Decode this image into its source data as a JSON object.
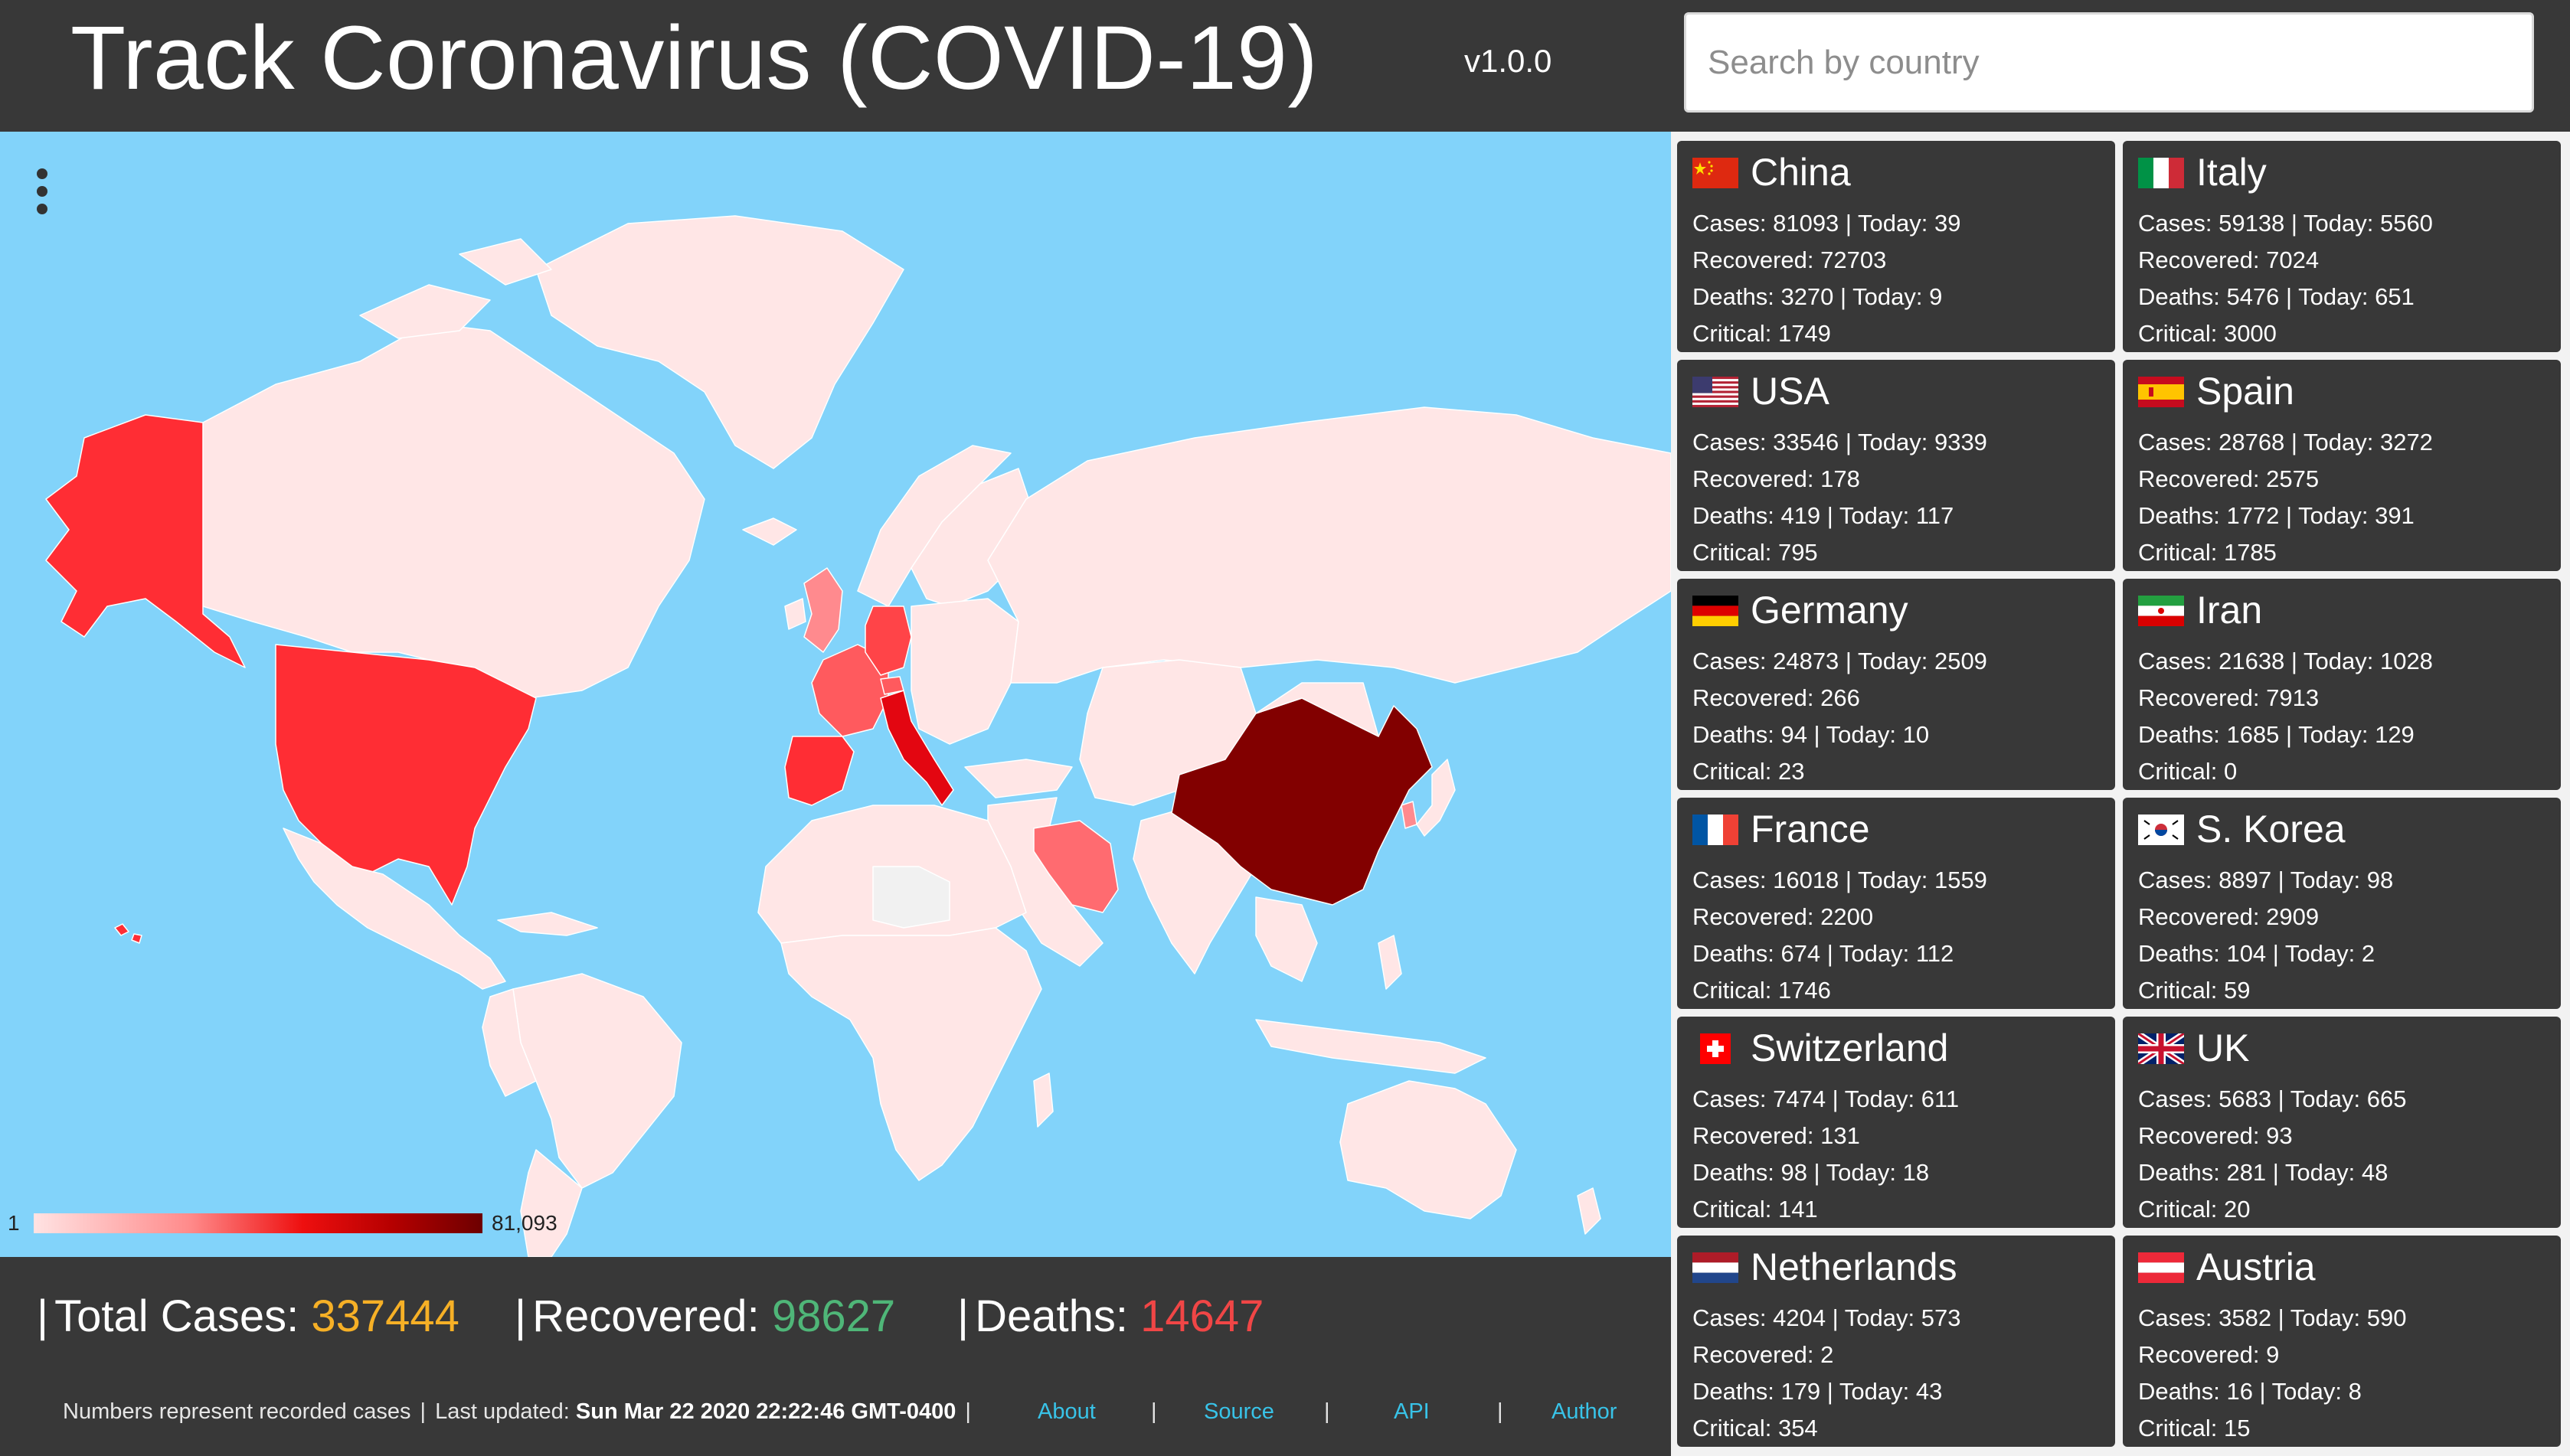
{
  "app": {
    "title": "Track Coronavirus (COVID-19)",
    "version": "v1.0.0"
  },
  "search": {
    "placeholder": "Search by country",
    "value": ""
  },
  "map": {
    "legend_min": "1",
    "legend_max": "81,093",
    "ocean_color": "#82d3fa",
    "menu_icon": "more-vert-icon"
  },
  "stats": {
    "total_cases_label": "Total Cases:",
    "total_cases_value": "337444",
    "recovered_label": "Recovered:",
    "recovered_value": "98627",
    "deaths_label": "Deaths:",
    "deaths_value": "14647"
  },
  "footer": {
    "note": "Numbers represent recorded cases",
    "updated_label": "Last updated:",
    "updated_value": "Sun Mar 22 2020 22:22:46 GMT-0400",
    "links": [
      "About",
      "Source",
      "API",
      "Author"
    ]
  },
  "countries": [
    {
      "name": "China",
      "flag": "china-flag-icon",
      "l1": "Cases: 81093 | Today: 39",
      "l2": "Recovered: 72703",
      "l3": "Deaths: 3270 | Today: 9",
      "l4": "Critical: 1749"
    },
    {
      "name": "Italy",
      "flag": "italy-flag-icon",
      "l1": "Cases: 59138 | Today: 5560",
      "l2": "Recovered: 7024",
      "l3": "Deaths: 5476 | Today: 651",
      "l4": "Critical: 3000"
    },
    {
      "name": "USA",
      "flag": "usa-flag-icon",
      "l1": "Cases: 33546 | Today: 9339",
      "l2": "Recovered: 178",
      "l3": "Deaths: 419 | Today: 117",
      "l4": "Critical: 795"
    },
    {
      "name": "Spain",
      "flag": "spain-flag-icon",
      "l1": "Cases: 28768 | Today: 3272",
      "l2": "Recovered: 2575",
      "l3": "Deaths: 1772 | Today: 391",
      "l4": "Critical: 1785"
    },
    {
      "name": "Germany",
      "flag": "germany-flag-icon",
      "l1": "Cases: 24873 | Today: 2509",
      "l2": "Recovered: 266",
      "l3": "Deaths: 94 | Today: 10",
      "l4": "Critical: 23"
    },
    {
      "name": "Iran",
      "flag": "iran-flag-icon",
      "l1": "Cases: 21638 | Today: 1028",
      "l2": "Recovered: 7913",
      "l3": "Deaths: 1685 | Today: 129",
      "l4": "Critical: 0"
    },
    {
      "name": "France",
      "flag": "france-flag-icon",
      "l1": "Cases: 16018 | Today: 1559",
      "l2": "Recovered: 2200",
      "l3": "Deaths: 674 | Today: 112",
      "l4": "Critical: 1746"
    },
    {
      "name": "S. Korea",
      "flag": "south-korea-flag-icon",
      "l1": "Cases: 8897 | Today: 98",
      "l2": "Recovered: 2909",
      "l3": "Deaths: 104 | Today: 2",
      "l4": "Critical: 59"
    },
    {
      "name": "Switzerland",
      "flag": "switzerland-flag-icon",
      "l1": "Cases: 7474 | Today: 611",
      "l2": "Recovered: 131",
      "l3": "Deaths: 98 | Today: 18",
      "l4": "Critical: 141"
    },
    {
      "name": "UK",
      "flag": "uk-flag-icon",
      "l1": "Cases: 5683 | Today: 665",
      "l2": "Recovered: 93",
      "l3": "Deaths: 281 | Today: 48",
      "l4": "Critical: 20"
    },
    {
      "name": "Netherlands",
      "flag": "netherlands-flag-icon",
      "l1": "Cases: 4204 | Today: 573",
      "l2": "Recovered: 2",
      "l3": "Deaths: 179 | Today: 43",
      "l4": "Critical: 354"
    },
    {
      "name": "Austria",
      "flag": "austria-flag-icon",
      "l1": "Cases: 3582 | Today: 590",
      "l2": "Recovered: 9",
      "l3": "Deaths: 16 | Today: 8",
      "l4": "Critical: 15"
    }
  ]
}
